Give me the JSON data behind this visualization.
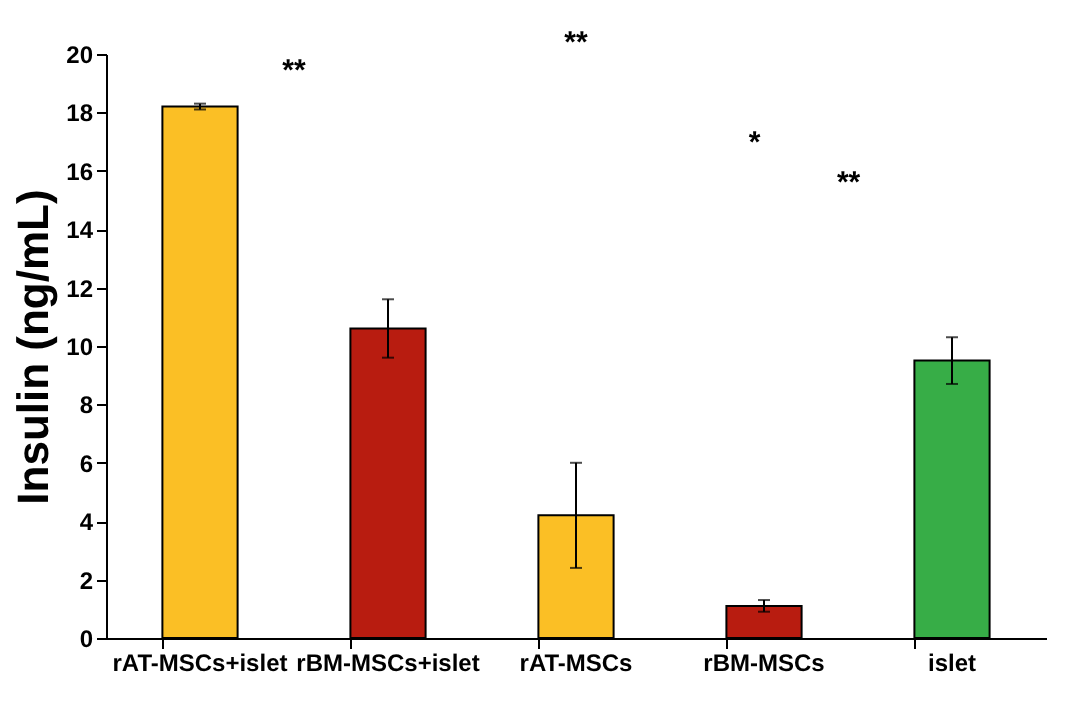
{
  "chart_data": {
    "type": "bar",
    "ylabel": "Insulin (ng/mL)",
    "categories": [
      "rAT-MSCs+islet",
      "rBM-MSCs+islet",
      "rAT-MSCs",
      "rBM-MSCs",
      "islet"
    ],
    "values": [
      18.2,
      10.6,
      4.2,
      1.1,
      9.5
    ],
    "colors": [
      "#fbbf25",
      "#b81c10",
      "#fbbf25",
      "#b81c10",
      "#37ad47"
    ],
    "errors": [
      0.1,
      1.0,
      1.8,
      0.2,
      0.8
    ],
    "ylim": [
      0,
      20
    ],
    "yticks": [
      0,
      2,
      4,
      6,
      8,
      10,
      12,
      14,
      16,
      18,
      20
    ],
    "grid": false,
    "annotations": [
      "**",
      "**",
      "*",
      "**"
    ]
  }
}
